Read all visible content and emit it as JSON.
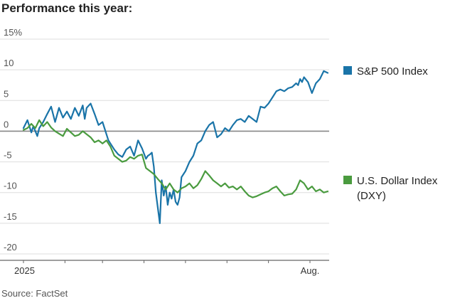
{
  "chart_data": {
    "type": "line",
    "title": "Performance this year:",
    "source": "Source: FactSet",
    "xlabel": "",
    "ylabel": "",
    "ylim": [
      -20,
      15
    ],
    "y_ticks": [
      15,
      10,
      5,
      0,
      -5,
      -10,
      -15,
      -20
    ],
    "y_tick_labels": [
      "15%",
      "10",
      "5",
      "0",
      "-5",
      "-10",
      "-15",
      "-20"
    ],
    "x_range": [
      0,
      154
    ],
    "x_tick_positions": [
      0,
      21,
      40,
      61,
      82,
      103,
      124,
      145
    ],
    "x_labels": [
      {
        "x": 0,
        "text": "2025"
      },
      {
        "x": 145,
        "text": "Aug."
      }
    ],
    "zero_line": true,
    "grid": "horizontal",
    "series": [
      {
        "name": "S&P 500 Index",
        "legend_label": "S&P 500 Index",
        "color": "#1a74a8",
        "x": [
          0,
          2,
          4,
          5,
          7,
          8,
          10,
          12,
          14,
          16,
          18,
          20,
          22,
          24,
          26,
          28,
          30,
          31,
          32,
          34,
          36,
          38,
          40,
          42,
          43,
          44,
          46,
          48,
          50,
          52,
          54,
          56,
          58,
          60,
          62,
          63,
          64,
          65,
          66,
          67,
          68,
          69,
          70,
          71,
          72,
          73,
          74,
          75,
          76,
          77,
          78,
          79,
          80,
          82,
          84,
          86,
          88,
          90,
          92,
          94,
          96,
          98,
          100,
          102,
          104,
          106,
          108,
          110,
          112,
          114,
          116,
          118,
          120,
          122,
          124,
          126,
          128,
          130,
          132,
          134,
          136,
          138,
          139,
          140,
          141,
          142,
          144,
          146,
          148,
          150,
          152,
          154
        ],
        "values": [
          0.5,
          1.8,
          -0.2,
          0.8,
          -0.8,
          0.5,
          1.5,
          2.8,
          4.0,
          1.5,
          3.8,
          2.2,
          3.2,
          2.0,
          3.8,
          2.5,
          4.2,
          2.0,
          3.8,
          4.5,
          2.8,
          1.0,
          1.5,
          -0.5,
          -1.5,
          -2.0,
          -3.0,
          -3.8,
          -4.2,
          -3.0,
          -2.5,
          -4.0,
          -1.5,
          -2.8,
          -4.5,
          -4.0,
          -3.8,
          -3.5,
          -5.8,
          -10.0,
          -12.5,
          -15.0,
          -8.0,
          -10.5,
          -9.0,
          -12.0,
          -10.0,
          -11.0,
          -9.5,
          -11.5,
          -12.0,
          -10.8,
          -7.5,
          -6.5,
          -5.0,
          -4.0,
          -2.0,
          -1.5,
          0.0,
          1.0,
          1.5,
          -1.0,
          -0.5,
          0.5,
          0.0,
          1.0,
          1.8,
          2.0,
          1.5,
          2.5,
          2.0,
          1.5,
          4.0,
          3.8,
          4.5,
          5.5,
          6.5,
          6.8,
          6.5,
          7.0,
          7.2,
          7.8,
          7.5,
          8.5,
          8.0,
          8.8,
          8.0,
          6.2,
          7.8,
          8.5,
          9.8,
          9.5
        ]
      },
      {
        "name": "U.S. Dollar Index (DXY)",
        "legend_label": "U.S. Dollar Index\n(DXY)",
        "color": "#4a9b3f",
        "x": [
          0,
          2,
          4,
          6,
          8,
          10,
          12,
          14,
          16,
          18,
          20,
          22,
          24,
          26,
          28,
          30,
          32,
          34,
          36,
          38,
          40,
          42,
          44,
          46,
          48,
          50,
          52,
          54,
          56,
          58,
          60,
          62,
          64,
          66,
          68,
          70,
          72,
          74,
          76,
          78,
          80,
          82,
          84,
          86,
          88,
          90,
          92,
          94,
          96,
          98,
          100,
          102,
          104,
          106,
          108,
          110,
          112,
          114,
          116,
          118,
          120,
          122,
          124,
          126,
          128,
          130,
          132,
          134,
          136,
          138,
          140,
          142,
          144,
          146,
          148,
          150,
          152,
          154
        ],
        "values": [
          0.2,
          0.5,
          1.2,
          0.5,
          1.8,
          0.8,
          1.5,
          0.6,
          0.0,
          -0.4,
          -0.8,
          0.4,
          -0.2,
          -0.8,
          -0.6,
          0.0,
          -0.5,
          -1.0,
          -1.8,
          -1.5,
          -2.0,
          -1.5,
          -2.5,
          -4.0,
          -4.5,
          -5.0,
          -4.8,
          -4.2,
          -4.5,
          -4.0,
          -3.8,
          -6.0,
          -6.5,
          -7.0,
          -7.8,
          -8.5,
          -9.5,
          -8.5,
          -9.5,
          -10.0,
          -9.3,
          -9.0,
          -8.5,
          -9.3,
          -8.8,
          -7.8,
          -6.5,
          -7.2,
          -8.0,
          -8.5,
          -9.0,
          -8.5,
          -9.2,
          -9.0,
          -9.5,
          -9.0,
          -9.8,
          -10.5,
          -10.8,
          -10.6,
          -10.3,
          -10.0,
          -9.8,
          -9.3,
          -9.0,
          -9.8,
          -10.5,
          -10.3,
          -10.2,
          -9.5,
          -8.0,
          -8.5,
          -9.5,
          -9.0,
          -9.8,
          -9.5,
          -10.0,
          -9.8
        ]
      }
    ]
  }
}
